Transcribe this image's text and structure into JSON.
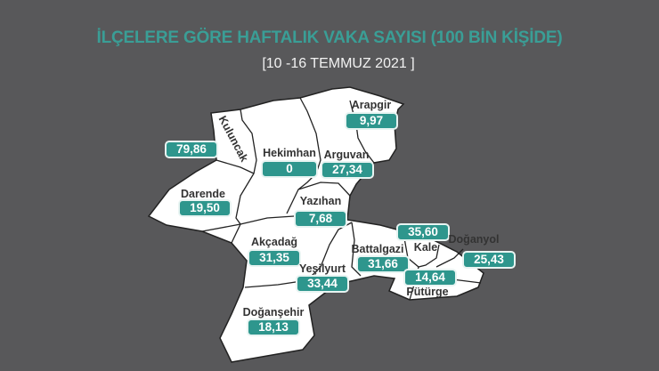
{
  "title": "İLÇELERE GÖRE HAFTALIK VAKA SAYISI (100 BİN KİŞİDE)",
  "subtitle": "[10 -16 TEMMUZ 2021 ]",
  "colors": {
    "background": "#58585a",
    "accent": "#2e968d",
    "title": "#3a9e96",
    "map_fill": "#ffffff"
  },
  "districts": [
    {
      "name": "Arapgir",
      "value": "9,97"
    },
    {
      "name": "Kuluncak",
      "value": "79,86"
    },
    {
      "name": "Hekimhan",
      "value": "0"
    },
    {
      "name": "Arguvan",
      "value": "27,34"
    },
    {
      "name": "Darende",
      "value": "19,50"
    },
    {
      "name": "Yazıhan",
      "value": "7,68"
    },
    {
      "name": "Akçadağ",
      "value": "31,35"
    },
    {
      "name": "Yeşilyurt",
      "value": "33,44"
    },
    {
      "name": "Battalgazi",
      "value": "31,66"
    },
    {
      "name": "Kale",
      "value": "35,60"
    },
    {
      "name": "Doğanyol",
      "value": "25,43"
    },
    {
      "name": "Pütürge",
      "value": "14,64"
    },
    {
      "name": "Doğanşehir",
      "value": "18,13"
    }
  ]
}
